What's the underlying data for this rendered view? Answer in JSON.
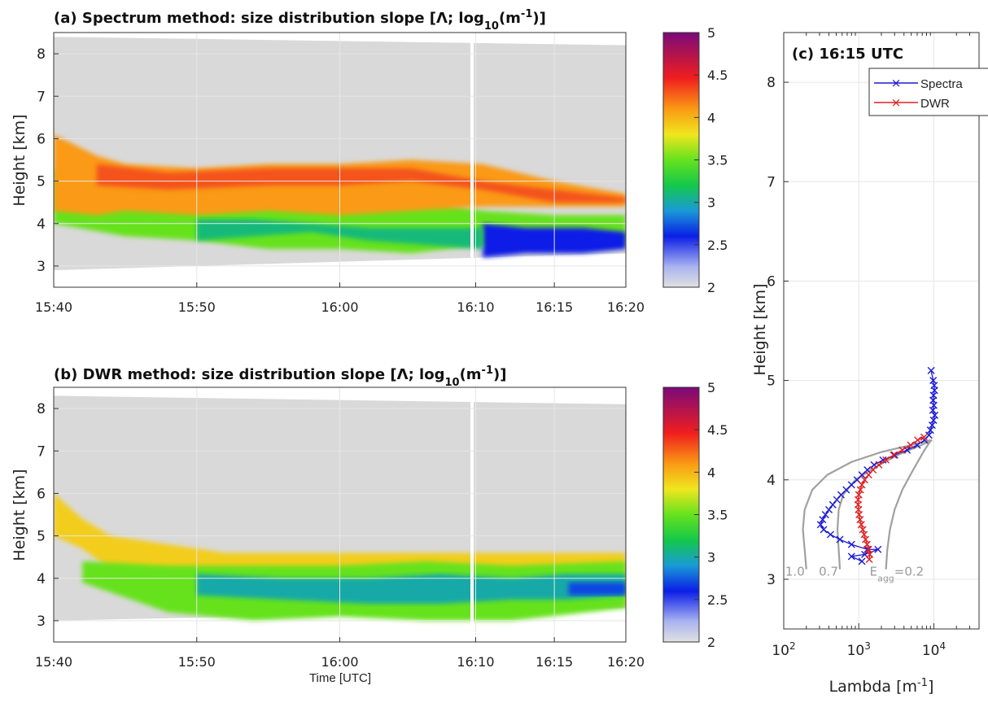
{
  "chart_data": [
    {
      "panel": "a",
      "type": "heatmap",
      "title_pre": "(a) Spectrum method: size distribution slope [Λ; log",
      "title_sub": "10",
      "title_mid": "(m",
      "title_sup": "-1",
      "title_post": ")]",
      "ylabel": "Height [km]",
      "xlabel": "",
      "ylim": [
        2.5,
        8.5
      ],
      "xlim_minutes": [
        0,
        40
      ],
      "yticks": [
        "3",
        "4",
        "5",
        "6",
        "7",
        "8"
      ],
      "xticks": [
        "15:40",
        "15:50",
        "16:00",
        "16:10",
        "16:15",
        "16:20"
      ],
      "xtick_minutes": [
        0,
        10,
        20,
        29.5,
        35,
        40
      ],
      "colorbar_ticks": [
        "2",
        "2.5",
        "3",
        "3.5",
        "4",
        "4.5",
        "5"
      ],
      "colorbar_range": [
        2,
        5
      ],
      "grid": true,
      "layers": [
        {
          "value": 3.5,
          "profile": [
            [
              0,
              4.0,
              5.3
            ],
            [
              5,
              3.7,
              5.0
            ],
            [
              10,
              3.6,
              4.8
            ],
            [
              15,
              3.4,
              4.9
            ],
            [
              20,
              3.4,
              4.8
            ],
            [
              25,
              3.3,
              4.6
            ],
            [
              30,
              3.5,
              4.3
            ],
            [
              35,
              3.5,
              4.2
            ],
            [
              40,
              3.5,
              4.2
            ]
          ]
        },
        {
          "value": 4.1,
          "profile": [
            [
              0,
              4.3,
              6.1
            ],
            [
              3,
              4.2,
              5.6
            ],
            [
              5,
              4.3,
              5.4
            ],
            [
              10,
              4.2,
              5.3
            ],
            [
              15,
              4.3,
              5.4
            ],
            [
              20,
              4.2,
              5.4
            ],
            [
              25,
              4.3,
              5.5
            ],
            [
              30,
              4.4,
              5.4
            ],
            [
              35,
              4.4,
              5.0
            ],
            [
              40,
              4.4,
              4.7
            ]
          ]
        },
        {
          "value": 4.3,
          "profile": [
            [
              3,
              4.9,
              5.4
            ],
            [
              8,
              4.8,
              5.2
            ],
            [
              15,
              4.9,
              5.3
            ],
            [
              20,
              4.9,
              5.3
            ],
            [
              25,
              5.0,
              5.3
            ],
            [
              30,
              4.8,
              5.0
            ],
            [
              35,
              4.5,
              4.8
            ],
            [
              40,
              4.5,
              4.6
            ]
          ]
        },
        {
          "value": 2.6,
          "profile": [
            [
              30,
              3.2,
              4.0
            ],
            [
              33,
              3.3,
              3.9
            ],
            [
              37,
              3.3,
              3.9
            ],
            [
              40,
              3.4,
              3.8
            ]
          ]
        },
        {
          "value": 3.1,
          "profile": [
            [
              10,
              3.6,
              4.1
            ],
            [
              14,
              3.7,
              4.1
            ],
            [
              18,
              3.8,
              4.0
            ],
            [
              22,
              3.6,
              3.9
            ],
            [
              26,
              3.5,
              3.9
            ],
            [
              30,
              3.4,
              3.9
            ]
          ]
        }
      ]
    },
    {
      "panel": "b",
      "type": "heatmap",
      "title_pre": "(b) DWR method: size distribution slope [Λ; log",
      "title_sub": "10",
      "title_mid": "(m",
      "title_sup": "-1",
      "title_post": ")]",
      "ylabel": "Height [km]",
      "xlabel": "Time [UTC]",
      "ylim": [
        2.5,
        8.5
      ],
      "xlim_minutes": [
        0,
        40
      ],
      "yticks": [
        "3",
        "4",
        "5",
        "6",
        "7",
        "8"
      ],
      "xticks": [
        "15:40",
        "15:50",
        "16:00",
        "16:10",
        "16:15",
        "16:20"
      ],
      "xtick_minutes": [
        0,
        10,
        20,
        29.5,
        35,
        40
      ],
      "colorbar_ticks": [
        "2",
        "2.5",
        "3",
        "3.5",
        "4",
        "4.5",
        "5"
      ],
      "colorbar_range": [
        2,
        5
      ],
      "grid": true,
      "layers": [
        {
          "value": 3.9,
          "profile": [
            [
              0,
              5.0,
              6.0
            ],
            [
              2,
              4.7,
              5.4
            ],
            [
              4,
              4.2,
              5.0
            ],
            [
              8,
              4.0,
              4.8
            ],
            [
              12,
              3.8,
              4.6
            ],
            [
              20,
              3.6,
              4.6
            ],
            [
              30,
              3.4,
              4.6
            ],
            [
              40,
              3.4,
              4.6
            ]
          ]
        },
        {
          "value": 3.5,
          "profile": [
            [
              2,
              3.9,
              4.4
            ],
            [
              8,
              3.2,
              4.3
            ],
            [
              14,
              3.0,
              4.3
            ],
            [
              20,
              3.1,
              4.3
            ],
            [
              26,
              3.0,
              4.4
            ],
            [
              32,
              3.0,
              4.3
            ],
            [
              40,
              3.3,
              4.4
            ]
          ]
        },
        {
          "value": 3.0,
          "profile": [
            [
              10,
              3.6,
              4.1
            ],
            [
              16,
              3.5,
              4.0
            ],
            [
              22,
              3.4,
              4.0
            ],
            [
              27,
              3.4,
              4.1
            ],
            [
              32,
              3.5,
              4.0
            ],
            [
              36,
              3.5,
              4.1
            ],
            [
              40,
              3.6,
              4.1
            ]
          ]
        },
        {
          "value": 2.7,
          "profile": [
            [
              36,
              3.6,
              3.9
            ],
            [
              40,
              3.6,
              3.9
            ]
          ]
        }
      ]
    },
    {
      "panel": "c",
      "type": "line",
      "title": "(c) 16:15 UTC",
      "xlabel_pre": "Lambda [m",
      "xlabel_sup": "-1",
      "xlabel_post": "]",
      "ylabel": "Height [km]",
      "xscale": "log",
      "xlim": [
        100,
        40000
      ],
      "ylim": [
        2.5,
        8.5
      ],
      "yticks": [
        "3",
        "4",
        "5",
        "6",
        "7",
        "8"
      ],
      "xticks_base": [
        "10",
        "10",
        "10"
      ],
      "xticks_exp": [
        "2",
        "3",
        "4"
      ],
      "grid": true,
      "legend": "top-right",
      "series": [
        {
          "name": "Spectra",
          "color": "#1a1ad6",
          "marker": "x",
          "points": [
            [
              9200,
              5.1
            ],
            [
              9800,
              5.0
            ],
            [
              10100,
              4.95
            ],
            [
              10200,
              4.9
            ],
            [
              9900,
              4.85
            ],
            [
              9800,
              4.8
            ],
            [
              10000,
              4.75
            ],
            [
              9700,
              4.7
            ],
            [
              10300,
              4.65
            ],
            [
              9900,
              4.6
            ],
            [
              9500,
              4.55
            ],
            [
              9000,
              4.5
            ],
            [
              8600,
              4.45
            ],
            [
              7500,
              4.4
            ],
            [
              6000,
              4.35
            ],
            [
              4400,
              4.3
            ],
            [
              3000,
              4.25
            ],
            [
              2100,
              4.2
            ],
            [
              1600,
              4.15
            ],
            [
              1300,
              4.1
            ],
            [
              1100,
              4.05
            ],
            [
              950,
              4.0
            ],
            [
              800,
              3.95
            ],
            [
              680,
              3.9
            ],
            [
              580,
              3.85
            ],
            [
              510,
              3.8
            ],
            [
              450,
              3.75
            ],
            [
              400,
              3.7
            ],
            [
              360,
              3.65
            ],
            [
              330,
              3.6
            ],
            [
              310,
              3.55
            ],
            [
              340,
              3.5
            ],
            [
              420,
              3.45
            ],
            [
              560,
              3.4
            ],
            [
              800,
              3.35
            ],
            [
              1300,
              3.3
            ],
            [
              1800,
              3.3
            ],
            [
              1200,
              3.25
            ],
            [
              800,
              3.23
            ],
            [
              1100,
              3.18
            ]
          ]
        },
        {
          "name": "DWR",
          "color": "#e02020",
          "marker": "x",
          "points": [
            [
              7400,
              4.43
            ],
            [
              6100,
              4.4
            ],
            [
              4900,
              4.35
            ],
            [
              3800,
              4.3
            ],
            [
              2900,
              4.25
            ],
            [
              2300,
              4.2
            ],
            [
              1850,
              4.15
            ],
            [
              1550,
              4.1
            ],
            [
              1350,
              4.05
            ],
            [
              1200,
              4.0
            ],
            [
              1100,
              3.95
            ],
            [
              1050,
              3.9
            ],
            [
              1000,
              3.85
            ],
            [
              980,
              3.8
            ],
            [
              980,
              3.75
            ],
            [
              990,
              3.7
            ],
            [
              1010,
              3.65
            ],
            [
              1040,
              3.6
            ],
            [
              1080,
              3.55
            ],
            [
              1130,
              3.5
            ],
            [
              1180,
              3.45
            ],
            [
              1230,
              3.4
            ],
            [
              1290,
              3.35
            ],
            [
              1350,
              3.3
            ],
            [
              1400,
              3.25
            ],
            [
              1380,
              3.2
            ]
          ]
        }
      ],
      "reference_curves": [
        {
          "label": "1.0",
          "color": "#a0a0a0",
          "points": [
            [
              200,
              3.1
            ],
            [
              190,
              3.3
            ],
            [
              180,
              3.5
            ],
            [
              190,
              3.7
            ],
            [
              240,
              3.9
            ],
            [
              380,
              4.05
            ],
            [
              800,
              4.18
            ],
            [
              2000,
              4.28
            ],
            [
              5000,
              4.35
            ],
            [
              9000,
              4.4
            ]
          ]
        },
        {
          "label": "0.7",
          "color": "#a0a0a0",
          "points": [
            [
              560,
              3.1
            ],
            [
              540,
              3.3
            ],
            [
              520,
              3.5
            ],
            [
              540,
              3.7
            ],
            [
              620,
              3.85
            ],
            [
              900,
              4.0
            ],
            [
              1600,
              4.12
            ],
            [
              3300,
              4.25
            ],
            [
              6800,
              4.35
            ],
            [
              9500,
              4.4
            ]
          ]
        },
        {
          "label": "=0.2",
          "label_pre": "E",
          "label_sub": "agg",
          "color": "#a0a0a0",
          "points": [
            [
              2300,
              3.1
            ],
            [
              2400,
              3.3
            ],
            [
              2600,
              3.5
            ],
            [
              3000,
              3.7
            ],
            [
              3800,
              3.9
            ],
            [
              5300,
              4.1
            ],
            [
              7500,
              4.3
            ],
            [
              9200,
              4.4
            ]
          ]
        }
      ]
    }
  ]
}
